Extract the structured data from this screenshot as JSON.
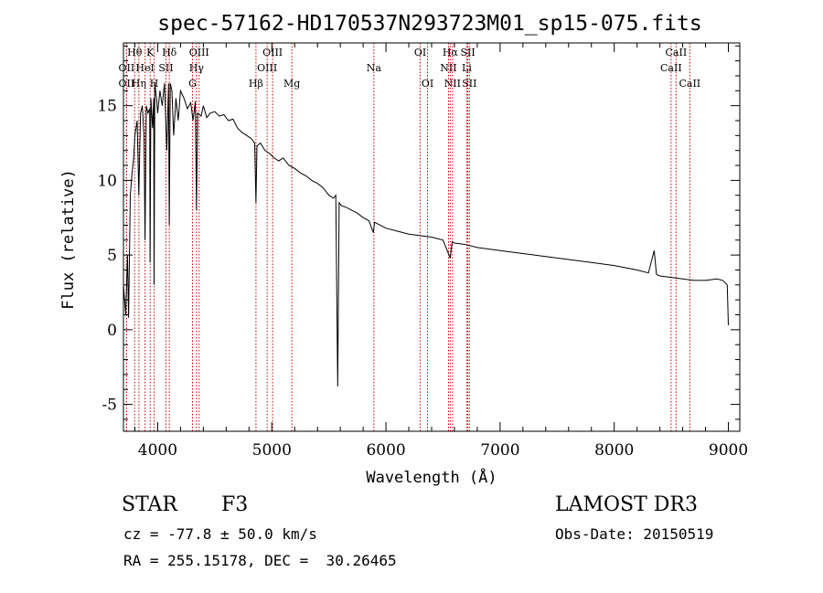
{
  "chart_data": {
    "type": "line",
    "title": "spec-57162-HD170537N293723M01_sp15-075.fits",
    "xlabel": "Wavelength (Å)",
    "ylabel": "Flux (relative)",
    "xlim": [
      3700,
      9100
    ],
    "ylim": [
      -6.8,
      19.2
    ],
    "x_ticks": [
      4000,
      5000,
      6000,
      7000,
      8000,
      9000
    ],
    "x_tick_labels": [
      "4000",
      "5000",
      "6000",
      "7000",
      "8000",
      "9000"
    ],
    "y_ticks": [
      -5,
      0,
      5,
      10,
      15
    ],
    "y_tick_labels": [
      "-5",
      "0",
      "5",
      "10",
      "15"
    ],
    "line_color": "#000000",
    "marker_color": "#cc0000",
    "grid": false,
    "spectrum": {
      "x": [
        3700,
        3720,
        3735,
        3745,
        3760,
        3775,
        3790,
        3800,
        3820,
        3835,
        3850,
        3865,
        3880,
        3889,
        3900,
        3915,
        3930,
        3933,
        3940,
        3955,
        3965,
        3968,
        3975,
        3990,
        4000,
        4020,
        4040,
        4060,
        4080,
        4095,
        4101,
        4110,
        4125,
        4140,
        4160,
        4180,
        4200,
        4230,
        4260,
        4290,
        4310,
        4330,
        4340,
        4350,
        4380,
        4400,
        4430,
        4460,
        4500,
        4540,
        4580,
        4620,
        4660,
        4700,
        4740,
        4780,
        4820,
        4850,
        4861,
        4870,
        4900,
        4940,
        4980,
        5020,
        5060,
        5100,
        5150,
        5200,
        5250,
        5300,
        5350,
        5400,
        5450,
        5500,
        5540,
        5560,
        5577,
        5590,
        5610,
        5650,
        5700,
        5750,
        5800,
        5850,
        5890,
        5900,
        5950,
        6000,
        6100,
        6200,
        6300,
        6400,
        6500,
        6563,
        6580,
        6600,
        6700,
        6800,
        7000,
        7200,
        7400,
        7600,
        7800,
        8000,
        8200,
        8300,
        8350,
        8370,
        8400,
        8500,
        8600,
        8700,
        8800,
        8900,
        8950,
        8990,
        9000
      ],
      "y": [
        3.0,
        1.0,
        5.0,
        0.8,
        9.0,
        10.5,
        11.5,
        13.0,
        14.0,
        9.0,
        14.5,
        15.0,
        13.0,
        6.0,
        15.0,
        14.5,
        14.8,
        4.5,
        15.5,
        13.5,
        15.5,
        3.0,
        16.5,
        15.5,
        14.5,
        16.0,
        15.0,
        16.5,
        12.0,
        16.5,
        7.0,
        16.5,
        16.0,
        13.0,
        15.5,
        14.0,
        16.0,
        15.5,
        14.8,
        15.2,
        14.0,
        15.3,
        8.0,
        14.5,
        14.3,
        15.0,
        14.2,
        14.5,
        14.6,
        14.3,
        14.4,
        14.0,
        14.1,
        13.5,
        13.2,
        13.0,
        12.8,
        12.5,
        8.5,
        12.3,
        12.5,
        12.0,
        11.8,
        11.5,
        11.3,
        11.5,
        11.0,
        10.8,
        10.5,
        10.3,
        10.0,
        9.8,
        9.5,
        9.0,
        8.8,
        9.0,
        -3.8,
        8.5,
        8.3,
        8.2,
        8.0,
        7.8,
        7.5,
        7.3,
        6.5,
        7.2,
        7.0,
        6.8,
        6.6,
        6.4,
        6.3,
        6.2,
        6.0,
        4.8,
        5.9,
        5.8,
        5.7,
        5.5,
        5.3,
        5.1,
        4.9,
        4.7,
        4.5,
        4.3,
        4.0,
        3.8,
        5.3,
        3.7,
        3.6,
        3.5,
        3.4,
        3.3,
        3.3,
        3.4,
        3.3,
        3.0,
        0.3
      ]
    },
    "lines": [
      {
        "name": "OII",
        "x": 3727,
        "row": 3
      },
      {
        "name": "OII",
        "x": 3727,
        "row": 2
      },
      {
        "name": "Hθ",
        "x": 3798,
        "row": 1
      },
      {
        "name": "Hη",
        "x": 3835,
        "row": 3
      },
      {
        "name": "HeI",
        "x": 3889,
        "row": 2
      },
      {
        "name": "K",
        "x": 3934,
        "row": 1
      },
      {
        "name": "H",
        "x": 3969,
        "row": 3
      },
      {
        "name": "SII",
        "x": 4072,
        "row": 2
      },
      {
        "name": "Hδ",
        "x": 4102,
        "row": 1
      },
      {
        "name": "G",
        "x": 4305,
        "row": 3
      },
      {
        "name": "Hγ",
        "x": 4340,
        "row": 2
      },
      {
        "name": "OIII",
        "x": 4363,
        "row": 1
      },
      {
        "name": "Hβ",
        "x": 4861,
        "row": 3
      },
      {
        "name": "OIII",
        "x": 4959,
        "row": 2
      },
      {
        "name": "OIII",
        "x": 5007,
        "row": 1
      },
      {
        "name": "Mg",
        "x": 5175,
        "row": 3
      },
      {
        "name": "Na",
        "x": 5894,
        "row": 2
      },
      {
        "name": "OI",
        "x": 6300,
        "row": 1
      },
      {
        "name": "OI",
        "x": 6364,
        "row": 3
      },
      {
        "name": "NII",
        "x": 6548,
        "row": 2
      },
      {
        "name": "Hα",
        "x": 6563,
        "row": 1
      },
      {
        "name": "NII",
        "x": 6583,
        "row": 3
      },
      {
        "name": "Li",
        "x": 6708,
        "row": 2
      },
      {
        "name": "SII",
        "x": 6717,
        "row": 1
      },
      {
        "name": "SII",
        "x": 6731,
        "row": 3
      },
      {
        "name": "CaII",
        "x": 8498,
        "row": 2
      },
      {
        "name": "CaII",
        "x": 8542,
        "row": 1
      },
      {
        "name": "CaII",
        "x": 8662,
        "row": 3
      }
    ]
  },
  "info": {
    "class": "STAR",
    "subclass": "F3",
    "cz": "cz = -77.8 ± 50.0 km/s",
    "radec": "RA = 255.15178, DEC =  30.26465",
    "survey": "LAMOST DR3",
    "obsdate": "Obs-Date: 20150519"
  }
}
